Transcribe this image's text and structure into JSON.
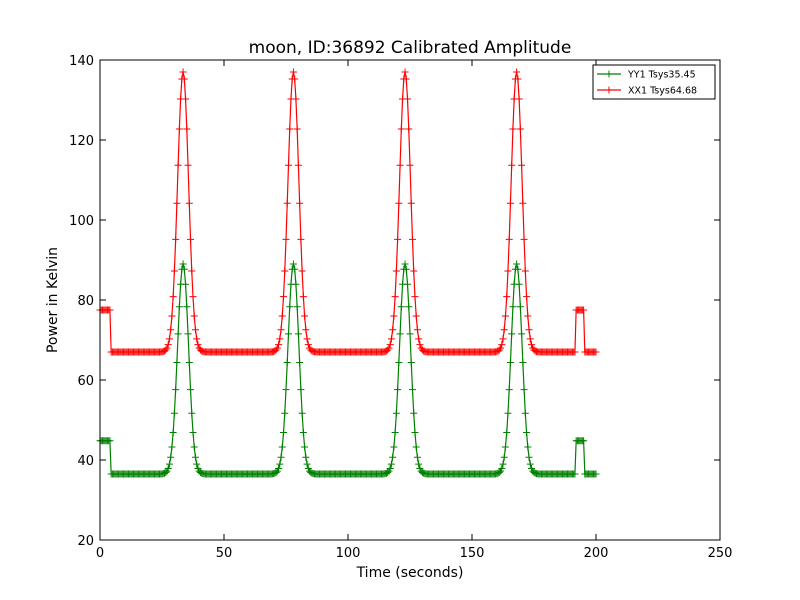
{
  "chart_data": {
    "type": "line",
    "title": "moon, ID:36892 Calibrated Amplitude",
    "xlabel": "Time (seconds)",
    "ylabel": "Power in Kelvin",
    "xlim": [
      0,
      250
    ],
    "ylim": [
      20,
      140
    ],
    "x_ticks": [
      "0",
      "50",
      "100",
      "150",
      "200",
      "250"
    ],
    "y_ticks": [
      "20",
      "40",
      "60",
      "80",
      "100",
      "120",
      "140"
    ],
    "grid": false,
    "legend_position": "top-right",
    "marker": "plus",
    "series": [
      {
        "name": "YY1 Tsys35.45",
        "color": "#008000",
        "baseline": 36.5,
        "cal_level": 44.8,
        "peak_times": [
          33.5,
          78,
          123,
          168
        ],
        "peak_value": 89,
        "peak_half_width": 4,
        "cal_on_segments": [
          [
            0,
            4
          ],
          [
            192,
            195
          ]
        ],
        "points": [
          [
            0,
            44.8
          ],
          [
            4,
            44.8
          ],
          [
            4.5,
            36.5
          ],
          [
            25,
            36.5
          ],
          [
            28,
            38
          ],
          [
            30,
            50
          ],
          [
            33.5,
            89
          ],
          [
            37,
            50
          ],
          [
            39,
            38
          ],
          [
            42,
            36.5
          ],
          [
            70,
            36.5
          ],
          [
            73,
            38
          ],
          [
            75,
            50
          ],
          [
            78,
            89
          ],
          [
            81,
            50
          ],
          [
            83,
            38
          ],
          [
            86,
            36.5
          ],
          [
            115,
            36.5
          ],
          [
            118,
            38
          ],
          [
            120,
            50
          ],
          [
            123,
            89
          ],
          [
            126,
            50
          ],
          [
            128,
            38
          ],
          [
            131,
            36.5
          ],
          [
            160,
            36.5
          ],
          [
            163,
            38
          ],
          [
            165,
            50
          ],
          [
            168,
            89
          ],
          [
            171,
            50
          ],
          [
            173,
            38
          ],
          [
            176,
            36.5
          ],
          [
            192,
            36.5
          ],
          [
            192.5,
            44.8
          ],
          [
            195,
            44.8
          ],
          [
            195.5,
            36.5
          ],
          [
            200,
            36.5
          ]
        ]
      },
      {
        "name": "XX1 Tsys64.68",
        "color": "#ff0000",
        "baseline": 67,
        "cal_level": 77.5,
        "peak_times": [
          33.5,
          78,
          123,
          168
        ],
        "peak_value": 137,
        "peak_half_width": 4,
        "cal_on_segments": [
          [
            0,
            4
          ],
          [
            192,
            195
          ]
        ],
        "points": [
          [
            0,
            77.5
          ],
          [
            4,
            77.5
          ],
          [
            4.5,
            67
          ],
          [
            25,
            67
          ],
          [
            28,
            69
          ],
          [
            30,
            85
          ],
          [
            33.5,
            137
          ],
          [
            37,
            85
          ],
          [
            39,
            69
          ],
          [
            42,
            67
          ],
          [
            70,
            67
          ],
          [
            73,
            69
          ],
          [
            75,
            85
          ],
          [
            78,
            137
          ],
          [
            81,
            85
          ],
          [
            83,
            69
          ],
          [
            86,
            67
          ],
          [
            115,
            67
          ],
          [
            118,
            69
          ],
          [
            120,
            85
          ],
          [
            123,
            137
          ],
          [
            126,
            85
          ],
          [
            128,
            69
          ],
          [
            131,
            67
          ],
          [
            160,
            67
          ],
          [
            163,
            69
          ],
          [
            165,
            85
          ],
          [
            168,
            137
          ],
          [
            171,
            85
          ],
          [
            173,
            69
          ],
          [
            176,
            67
          ],
          [
            192,
            67
          ],
          [
            192.5,
            77.5
          ],
          [
            195,
            77.5
          ],
          [
            195.5,
            67
          ],
          [
            200,
            67
          ]
        ]
      }
    ]
  }
}
